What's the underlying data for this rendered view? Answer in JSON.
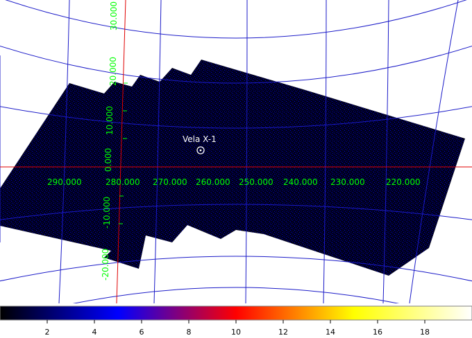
{
  "map": {
    "background_color": "#ffffff",
    "image_color_dark": "#000018",
    "image_noise_color": "#0000c8",
    "grid_color": "#1a1ac8",
    "axis_color": "#e00000",
    "label_color": "#00ff00",
    "source": {
      "name": "Vela X-1",
      "symbol": "circle-with-dot-marker"
    },
    "longitude_labels": [
      "290.000",
      "280.000",
      "270.000",
      "260.000",
      "250.000",
      "240.000",
      "230.000",
      "220.000"
    ],
    "latitude_labels": [
      "30.000",
      "20.000",
      "10.000",
      "0.000",
      "-10.000",
      "-20.000"
    ]
  },
  "colorbar": {
    "colormap": [
      "#000000",
      "#0000ff",
      "#ff0000",
      "#ffff00",
      "#ffffff"
    ],
    "range": [
      0,
      20
    ],
    "ticks": [
      "2",
      "4",
      "6",
      "8",
      "10",
      "12",
      "14",
      "16",
      "18"
    ]
  }
}
